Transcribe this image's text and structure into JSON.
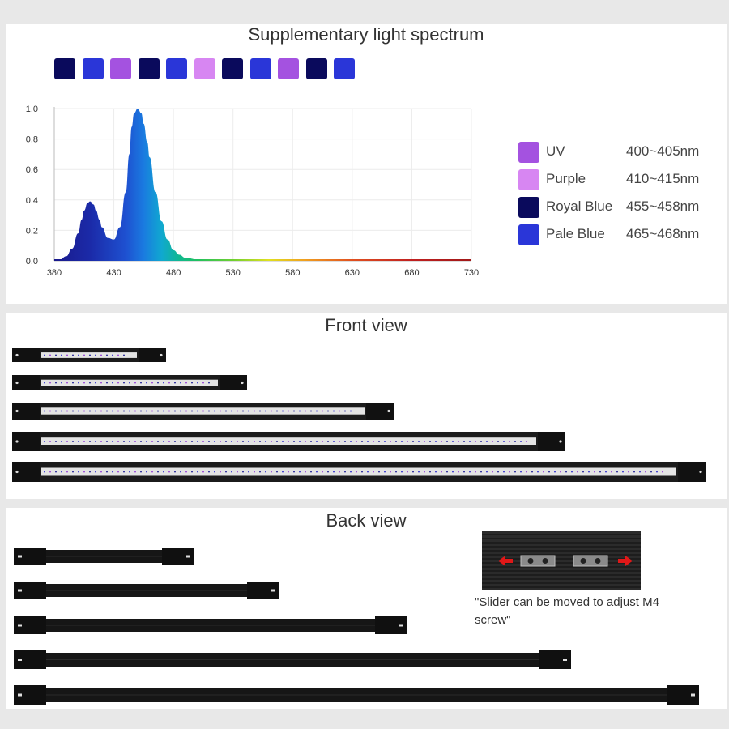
{
  "spectrum_panel": {
    "title": "Supplementary light spectrum",
    "swatches": [
      "#0a0a5c",
      "#2a36d8",
      "#a452e0",
      "#0a0a5c",
      "#2a36d8",
      "#d786f2",
      "#0a0a5c",
      "#2a36d8",
      "#a452e0",
      "#0a0a5c",
      "#2a36d8"
    ]
  },
  "chart_data": {
    "type": "area",
    "title": "Supplementary light spectrum",
    "xlabel": "",
    "ylabel": "",
    "xlim": [
      380,
      730
    ],
    "ylim": [
      0,
      1.0
    ],
    "x_ticks": [
      "380",
      "430",
      "480",
      "530",
      "580",
      "630",
      "680",
      "730"
    ],
    "y_ticks": [
      "0.0",
      "0.2",
      "0.4",
      "0.6",
      "0.8",
      "1.0"
    ],
    "grid": true,
    "series": [
      {
        "x": [
          380,
          385,
          390,
          395,
          400,
          403,
          405,
          408,
          410,
          413,
          415,
          418,
          420,
          425,
          430,
          435,
          440,
          443,
          445,
          447,
          450,
          453,
          455,
          458,
          460,
          465,
          470,
          475,
          480,
          485,
          490,
          500,
          510,
          520,
          530,
          550,
          580,
          630,
          680,
          730
        ],
        "values": [
          0.0,
          0.01,
          0.03,
          0.08,
          0.18,
          0.27,
          0.33,
          0.38,
          0.39,
          0.37,
          0.33,
          0.27,
          0.22,
          0.15,
          0.14,
          0.22,
          0.45,
          0.7,
          0.88,
          0.97,
          1.0,
          0.97,
          0.9,
          0.78,
          0.68,
          0.45,
          0.26,
          0.14,
          0.07,
          0.04,
          0.02,
          0.01,
          0.005,
          0.003,
          0.002,
          0.001,
          0.001,
          0.0,
          0.0,
          0.0
        ]
      }
    ]
  },
  "legend": [
    {
      "name": "UV",
      "range": "400~405nm",
      "color": "#a452e0"
    },
    {
      "name": "Purple",
      "range": "410~415nm",
      "color": "#d786f2"
    },
    {
      "name": "Royal Blue",
      "range": "455~458nm",
      "color": "#0a0a5c"
    },
    {
      "name": "Pale Blue",
      "range": "465~468nm",
      "color": "#2a36d8"
    }
  ],
  "front_panel": {
    "title": "Front view"
  },
  "back_panel": {
    "title": "Back view",
    "note": "\"Slider can be moved to adjust M4 screw\""
  }
}
